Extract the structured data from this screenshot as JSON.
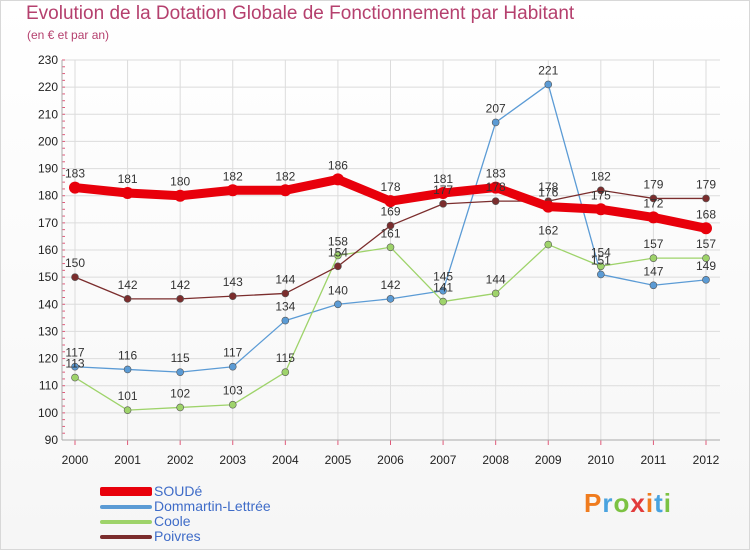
{
  "header": {
    "title": "Evolution de la Dotation Globale de Fonctionnement par Habitant",
    "subtitle": "(en € et par an)"
  },
  "logo": {
    "text": "Proxiti",
    "colors": [
      "#f07c1e",
      "#4aa3df",
      "#7cc242",
      "#e23b3b"
    ]
  },
  "chart_data": {
    "type": "line",
    "title": "Evolution de la Dotation Globale de Fonctionnement par Habitant",
    "subtitle": "(en € et par an)",
    "xlabel": "",
    "ylabel": "",
    "x": [
      "2000",
      "2001",
      "2002",
      "2003",
      "2004",
      "2005",
      "2006",
      "2007",
      "2008",
      "2009",
      "2010",
      "2011",
      "2012"
    ],
    "ylim": [
      90,
      230
    ],
    "yticks": [
      90,
      100,
      110,
      120,
      130,
      140,
      150,
      160,
      170,
      180,
      190,
      200,
      210,
      220,
      230
    ],
    "grid": true,
    "legend_position": "bottom-left",
    "series": [
      {
        "name": "SOUDé",
        "color": "#e8000b",
        "values": [
          183,
          181,
          180,
          182,
          182,
          186,
          178,
          181,
          183,
          176,
          175,
          172,
          168
        ]
      },
      {
        "name": "Dommartin-Lettrée",
        "color": "#5b9bd5",
        "values": [
          117,
          116,
          115,
          117,
          134,
          140,
          142,
          145,
          207,
          221,
          151,
          147,
          149
        ]
      },
      {
        "name": "Coole",
        "color": "#9ed36a",
        "values": [
          113,
          101,
          102,
          103,
          115,
          158,
          161,
          141,
          144,
          162,
          154,
          157,
          157
        ]
      },
      {
        "name": "Poivres",
        "color": "#7b2d2d",
        "values": [
          150,
          142,
          142,
          143,
          144,
          154,
          169,
          177,
          178,
          178,
          182,
          179,
          179
        ]
      }
    ]
  }
}
